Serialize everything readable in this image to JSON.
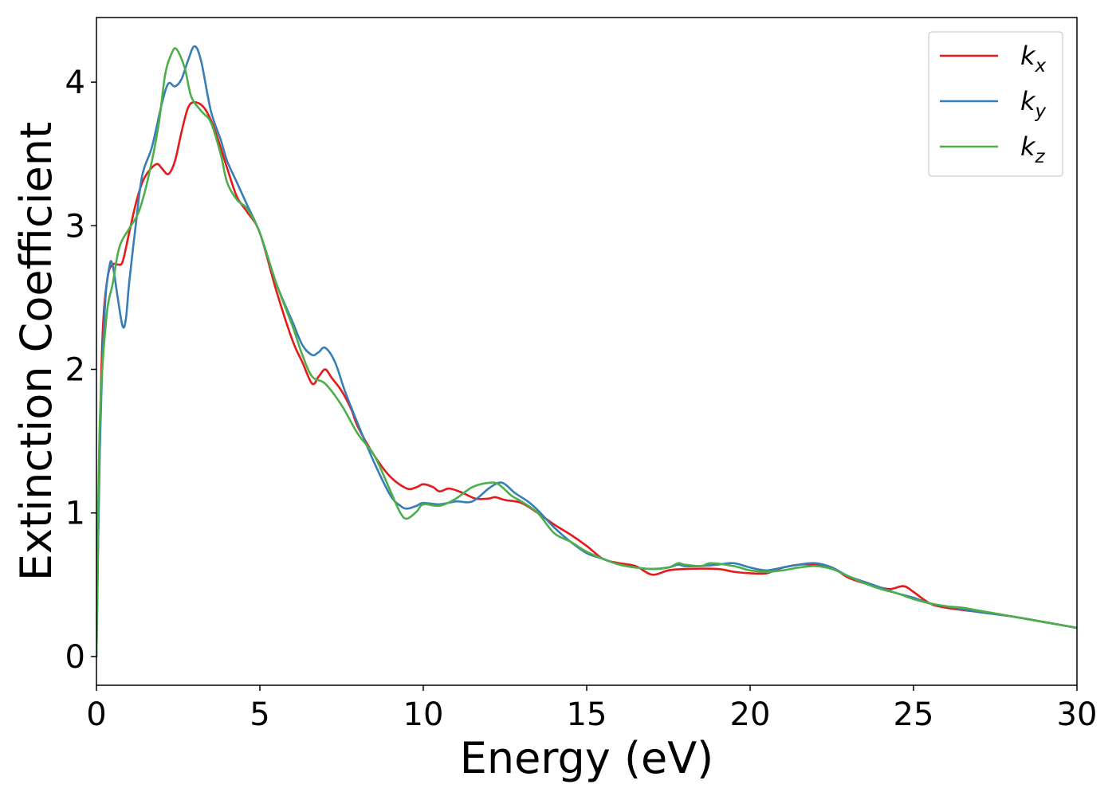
{
  "chart_data": {
    "type": "line",
    "title": "",
    "xlabel": "Energy (eV)",
    "ylabel": "Extinction Coefficient",
    "xlim": [
      0,
      30
    ],
    "ylim": [
      -0.2,
      4.45
    ],
    "x_ticks": [
      0,
      5,
      10,
      15,
      20,
      25,
      30
    ],
    "x_tick_labels": [
      "0",
      "5",
      "10",
      "15",
      "20",
      "25",
      "30"
    ],
    "y_ticks": [
      0,
      1,
      2,
      3,
      4
    ],
    "y_tick_labels": [
      "0",
      "1",
      "2",
      "3",
      "4"
    ],
    "grid": false,
    "legend_position": "top-right",
    "series": [
      {
        "name": "k",
        "subscript": "x",
        "color": "#e41a1c",
        "points": [
          [
            0,
            0
          ],
          [
            0.1,
            1.5
          ],
          [
            0.2,
            2.3
          ],
          [
            0.35,
            2.65
          ],
          [
            0.5,
            2.73
          ],
          [
            0.65,
            2.73
          ],
          [
            0.8,
            2.75
          ],
          [
            1.0,
            2.95
          ],
          [
            1.2,
            3.15
          ],
          [
            1.4,
            3.3
          ],
          [
            1.6,
            3.38
          ],
          [
            1.85,
            3.43
          ],
          [
            2.0,
            3.4
          ],
          [
            2.2,
            3.36
          ],
          [
            2.4,
            3.45
          ],
          [
            2.6,
            3.65
          ],
          [
            2.8,
            3.82
          ],
          [
            3.0,
            3.86
          ],
          [
            3.3,
            3.82
          ],
          [
            3.6,
            3.68
          ],
          [
            4.0,
            3.4
          ],
          [
            4.3,
            3.2
          ],
          [
            4.6,
            3.1
          ],
          [
            5.0,
            2.95
          ],
          [
            5.5,
            2.55
          ],
          [
            6.0,
            2.2
          ],
          [
            6.3,
            2.05
          ],
          [
            6.6,
            1.9
          ],
          [
            6.8,
            1.95
          ],
          [
            7.0,
            2.0
          ],
          [
            7.2,
            1.94
          ],
          [
            7.5,
            1.85
          ],
          [
            7.8,
            1.72
          ],
          [
            8.0,
            1.6
          ],
          [
            8.5,
            1.4
          ],
          [
            9.0,
            1.25
          ],
          [
            9.5,
            1.17
          ],
          [
            9.8,
            1.18
          ],
          [
            10.0,
            1.2
          ],
          [
            10.3,
            1.18
          ],
          [
            10.5,
            1.15
          ],
          [
            10.8,
            1.17
          ],
          [
            11.2,
            1.14
          ],
          [
            11.6,
            1.1
          ],
          [
            12.0,
            1.1
          ],
          [
            12.2,
            1.11
          ],
          [
            12.5,
            1.09
          ],
          [
            13.0,
            1.07
          ],
          [
            13.5,
            1.0
          ],
          [
            14.0,
            0.92
          ],
          [
            14.5,
            0.85
          ],
          [
            15.0,
            0.77
          ],
          [
            15.5,
            0.68
          ],
          [
            16.0,
            0.65
          ],
          [
            16.5,
            0.63
          ],
          [
            17.0,
            0.57
          ],
          [
            17.5,
            0.6
          ],
          [
            18.0,
            0.61
          ],
          [
            19.0,
            0.61
          ],
          [
            19.5,
            0.59
          ],
          [
            20.0,
            0.58
          ],
          [
            20.5,
            0.58
          ],
          [
            21.0,
            0.62
          ],
          [
            21.5,
            0.64
          ],
          [
            22.0,
            0.64
          ],
          [
            22.5,
            0.62
          ],
          [
            23.0,
            0.55
          ],
          [
            23.5,
            0.51
          ],
          [
            24.0,
            0.48
          ],
          [
            24.3,
            0.47
          ],
          [
            24.7,
            0.49
          ],
          [
            25.0,
            0.45
          ],
          [
            25.5,
            0.37
          ],
          [
            26.0,
            0.34
          ],
          [
            27.0,
            0.31
          ],
          [
            28.0,
            0.28
          ],
          [
            29.0,
            0.24
          ],
          [
            30.0,
            0.2
          ]
        ]
      },
      {
        "name": "k",
        "subscript": "y",
        "color": "#377eb8",
        "points": [
          [
            0,
            0
          ],
          [
            0.1,
            1.4
          ],
          [
            0.25,
            2.4
          ],
          [
            0.4,
            2.72
          ],
          [
            0.5,
            2.72
          ],
          [
            0.65,
            2.5
          ],
          [
            0.8,
            2.3
          ],
          [
            0.9,
            2.35
          ],
          [
            1.0,
            2.6
          ],
          [
            1.2,
            3.0
          ],
          [
            1.4,
            3.35
          ],
          [
            1.7,
            3.55
          ],
          [
            2.0,
            3.85
          ],
          [
            2.2,
            3.99
          ],
          [
            2.4,
            3.97
          ],
          [
            2.6,
            4.02
          ],
          [
            2.8,
            4.15
          ],
          [
            3.0,
            4.25
          ],
          [
            3.2,
            4.15
          ],
          [
            3.5,
            3.8
          ],
          [
            3.8,
            3.6
          ],
          [
            4.0,
            3.45
          ],
          [
            4.3,
            3.3
          ],
          [
            4.6,
            3.15
          ],
          [
            5.0,
            2.95
          ],
          [
            5.5,
            2.6
          ],
          [
            6.0,
            2.33
          ],
          [
            6.3,
            2.17
          ],
          [
            6.6,
            2.1
          ],
          [
            6.8,
            2.12
          ],
          [
            7.0,
            2.15
          ],
          [
            7.3,
            2.05
          ],
          [
            7.6,
            1.85
          ],
          [
            8.0,
            1.62
          ],
          [
            8.5,
            1.35
          ],
          [
            9.0,
            1.12
          ],
          [
            9.3,
            1.05
          ],
          [
            9.5,
            1.03
          ],
          [
            9.8,
            1.05
          ],
          [
            10.0,
            1.07
          ],
          [
            10.5,
            1.06
          ],
          [
            11.0,
            1.08
          ],
          [
            11.5,
            1.08
          ],
          [
            12.0,
            1.17
          ],
          [
            12.3,
            1.21
          ],
          [
            12.5,
            1.2
          ],
          [
            12.8,
            1.14
          ],
          [
            13.2,
            1.08
          ],
          [
            13.5,
            1.02
          ],
          [
            14.0,
            0.9
          ],
          [
            14.5,
            0.8
          ],
          [
            15.0,
            0.72
          ],
          [
            15.5,
            0.68
          ],
          [
            16.0,
            0.64
          ],
          [
            16.5,
            0.62
          ],
          [
            17.0,
            0.61
          ],
          [
            17.5,
            0.62
          ],
          [
            17.8,
            0.64
          ],
          [
            18.0,
            0.63
          ],
          [
            18.5,
            0.63
          ],
          [
            19.0,
            0.64
          ],
          [
            19.5,
            0.65
          ],
          [
            20.0,
            0.62
          ],
          [
            20.5,
            0.6
          ],
          [
            21.0,
            0.62
          ],
          [
            21.5,
            0.64
          ],
          [
            22.0,
            0.65
          ],
          [
            22.5,
            0.62
          ],
          [
            23.0,
            0.56
          ],
          [
            23.5,
            0.52
          ],
          [
            24.0,
            0.48
          ],
          [
            24.5,
            0.44
          ],
          [
            25.0,
            0.41
          ],
          [
            25.5,
            0.37
          ],
          [
            26.0,
            0.35
          ],
          [
            27.0,
            0.31
          ],
          [
            28.0,
            0.28
          ],
          [
            29.0,
            0.24
          ],
          [
            30.0,
            0.2
          ]
        ]
      },
      {
        "name": "k",
        "subscript": "z",
        "color": "#4daf4a",
        "points": [
          [
            0,
            0
          ],
          [
            0.1,
            1.6
          ],
          [
            0.3,
            2.35
          ],
          [
            0.5,
            2.6
          ],
          [
            0.7,
            2.85
          ],
          [
            1.0,
            2.98
          ],
          [
            1.3,
            3.1
          ],
          [
            1.6,
            3.35
          ],
          [
            1.9,
            3.7
          ],
          [
            2.1,
            4.05
          ],
          [
            2.3,
            4.2
          ],
          [
            2.45,
            4.23
          ],
          [
            2.7,
            4.1
          ],
          [
            2.9,
            3.9
          ],
          [
            3.2,
            3.8
          ],
          [
            3.5,
            3.72
          ],
          [
            3.8,
            3.5
          ],
          [
            4.0,
            3.3
          ],
          [
            4.3,
            3.18
          ],
          [
            4.6,
            3.12
          ],
          [
            5.0,
            2.95
          ],
          [
            5.5,
            2.6
          ],
          [
            6.0,
            2.3
          ],
          [
            6.3,
            2.1
          ],
          [
            6.6,
            1.95
          ],
          [
            7.0,
            1.9
          ],
          [
            7.5,
            1.75
          ],
          [
            8.0,
            1.55
          ],
          [
            8.5,
            1.4
          ],
          [
            9.0,
            1.15
          ],
          [
            9.3,
            1.0
          ],
          [
            9.5,
            0.96
          ],
          [
            9.8,
            1.01
          ],
          [
            10.0,
            1.06
          ],
          [
            10.5,
            1.05
          ],
          [
            11.0,
            1.1
          ],
          [
            11.5,
            1.18
          ],
          [
            12.0,
            1.21
          ],
          [
            12.3,
            1.2
          ],
          [
            12.7,
            1.12
          ],
          [
            13.0,
            1.08
          ],
          [
            13.5,
            1.0
          ],
          [
            14.0,
            0.86
          ],
          [
            14.5,
            0.8
          ],
          [
            15.0,
            0.73
          ],
          [
            15.5,
            0.68
          ],
          [
            16.0,
            0.64
          ],
          [
            16.5,
            0.62
          ],
          [
            17.0,
            0.61
          ],
          [
            17.5,
            0.62
          ],
          [
            17.8,
            0.65
          ],
          [
            18.0,
            0.64
          ],
          [
            18.5,
            0.63
          ],
          [
            18.8,
            0.65
          ],
          [
            19.5,
            0.63
          ],
          [
            20.0,
            0.6
          ],
          [
            20.5,
            0.59
          ],
          [
            21.0,
            0.6
          ],
          [
            21.5,
            0.62
          ],
          [
            22.0,
            0.63
          ],
          [
            22.5,
            0.61
          ],
          [
            23.0,
            0.56
          ],
          [
            23.5,
            0.51
          ],
          [
            24.0,
            0.47
          ],
          [
            24.5,
            0.44
          ],
          [
            25.0,
            0.4
          ],
          [
            25.5,
            0.37
          ],
          [
            26.0,
            0.35
          ],
          [
            26.5,
            0.34
          ],
          [
            27.0,
            0.32
          ],
          [
            28.0,
            0.28
          ],
          [
            29.0,
            0.24
          ],
          [
            30.0,
            0.2
          ]
        ]
      }
    ]
  }
}
